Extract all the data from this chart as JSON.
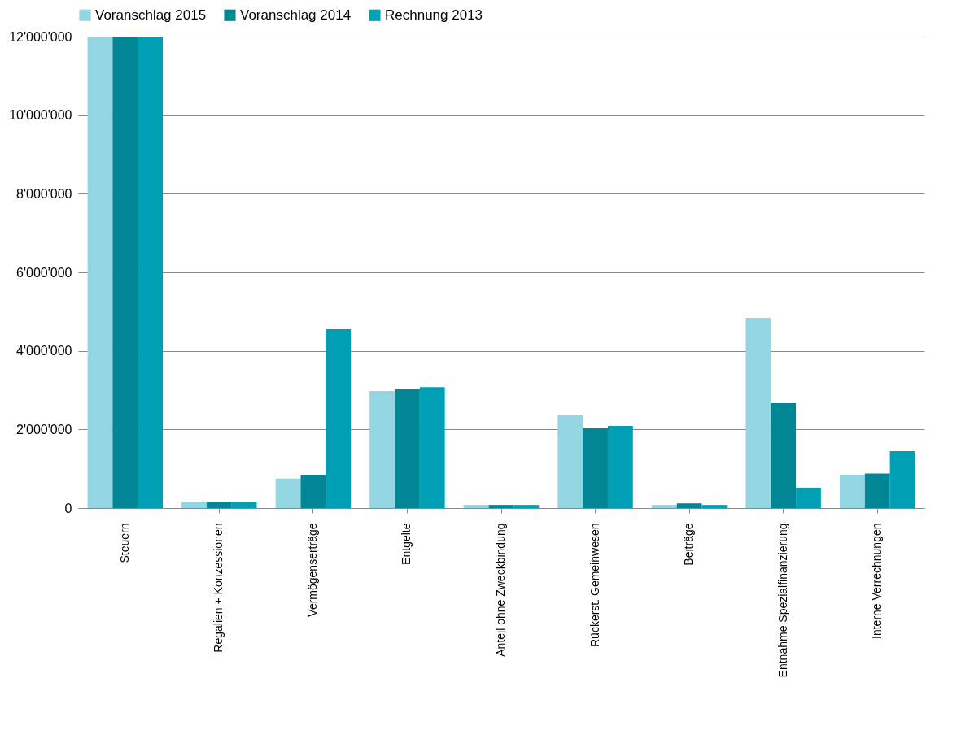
{
  "chart_data": {
    "type": "bar",
    "categories": [
      "Steuern",
      "Regalien + Konzessionen",
      "Vermögenserträge",
      "Entgelte",
      "Anteil ohne Zweckbindung",
      "Rückerst. Gemeinwesen",
      "Beiträge",
      "Entnahme Spezialfinanzierung",
      "Interne Verrechnungen"
    ],
    "series": [
      {
        "name": "Voranschlag 2015",
        "color": "#93d5e0",
        "values": [
          12000000,
          150000,
          750000,
          2980000,
          80000,
          2360000,
          80000,
          4840000,
          850000
        ]
      },
      {
        "name": "Voranschlag 2014",
        "color": "#008694",
        "values": [
          12000000,
          150000,
          850000,
          3020000,
          80000,
          2030000,
          120000,
          2670000,
          880000
        ]
      },
      {
        "name": "Rechnung 2013",
        "color": "#00a0b4",
        "values": [
          12000000,
          150000,
          4550000,
          3080000,
          80000,
          2090000,
          80000,
          520000,
          1450000
        ]
      }
    ],
    "ylim": [
      0,
      12000000
    ],
    "yticks": [
      {
        "value": 0,
        "label": "0"
      },
      {
        "value": 2000000,
        "label": "2'000'000"
      },
      {
        "value": 4000000,
        "label": "4'000'000"
      },
      {
        "value": 6000000,
        "label": "6'000'000"
      },
      {
        "value": 8000000,
        "label": "8'000'000"
      },
      {
        "value": 10000000,
        "label": "10'000'000"
      },
      {
        "value": 12000000,
        "label": "12'000'000"
      }
    ],
    "grid": "y",
    "legend": "top"
  }
}
